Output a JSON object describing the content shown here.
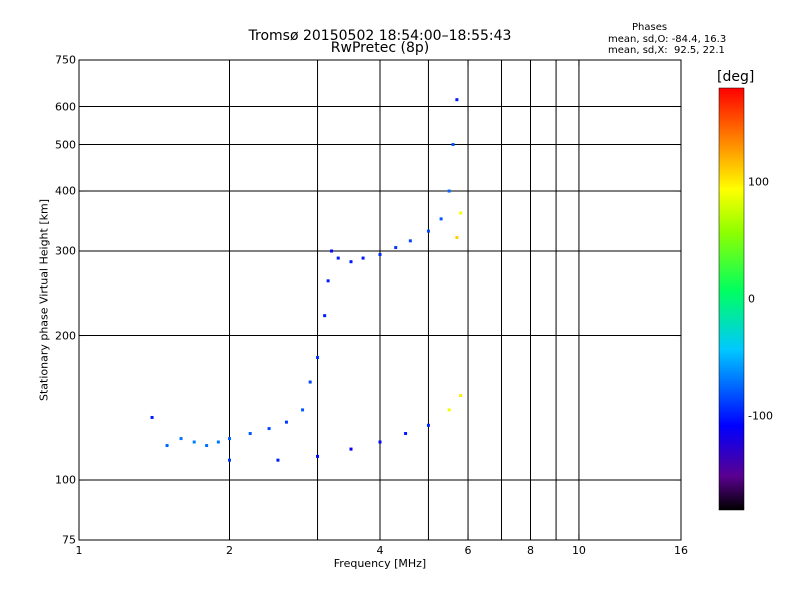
{
  "title_line1": "Tromsø 20150502 18:54:00–18:55:43",
  "title_line2": "RwPretec (8p)",
  "phases": {
    "heading": "Phases",
    "line1": "mean, sd,O: -84.4, 16.3",
    "line2": "mean, sd,X:  92.5, 22.1"
  },
  "colorbar": {
    "unit": "[deg]",
    "ticks": [
      {
        "label": "100",
        "value": 100
      },
      {
        "label": "0",
        "value": 0
      },
      {
        "label": "-100",
        "value": -100
      }
    ],
    "range": [
      -180,
      180
    ]
  },
  "chart_data": {
    "type": "scatter",
    "xlabel": "Frequency [MHz]",
    "ylabel": "Stationary phase Virtual Height [km]",
    "xscale": "log",
    "yscale": "log",
    "xlim": [
      1,
      16
    ],
    "ylim": [
      75,
      750
    ],
    "xticks": [
      {
        "label": "1",
        "value": 1
      },
      {
        "label": "2",
        "value": 2
      },
      {
        "label": "4",
        "value": 4
      },
      {
        "label": "6",
        "value": 6
      },
      {
        "label": "8",
        "value": 8
      },
      {
        "label": "10",
        "value": 10
      },
      {
        "label": "16",
        "value": 16
      }
    ],
    "yticks": [
      {
        "label": "750",
        "value": 750
      },
      {
        "label": "600",
        "value": 600
      },
      {
        "label": "500",
        "value": 500
      },
      {
        "label": "400",
        "value": 400
      },
      {
        "label": "300",
        "value": 300
      },
      {
        "label": "200",
        "value": 200
      },
      {
        "label": "100",
        "value": 100
      },
      {
        "label": "75",
        "value": 75
      }
    ],
    "grid_x": [
      1,
      2,
      3,
      4,
      5,
      6,
      7,
      8,
      9,
      10
    ],
    "grid_y": [
      100,
      200,
      300,
      400,
      500,
      600
    ],
    "grid": true,
    "series": [
      {
        "x": 1.4,
        "y": 135,
        "phase": -100
      },
      {
        "x": 1.5,
        "y": 118,
        "phase": -75
      },
      {
        "x": 1.6,
        "y": 122,
        "phase": -70
      },
      {
        "x": 1.7,
        "y": 120,
        "phase": -68
      },
      {
        "x": 1.8,
        "y": 118,
        "phase": -72
      },
      {
        "x": 1.9,
        "y": 120,
        "phase": -70
      },
      {
        "x": 2.0,
        "y": 122,
        "phase": -75
      },
      {
        "x": 2.2,
        "y": 125,
        "phase": -80
      },
      {
        "x": 2.4,
        "y": 128,
        "phase": -85
      },
      {
        "x": 2.6,
        "y": 132,
        "phase": -90
      },
      {
        "x": 2.8,
        "y": 140,
        "phase": -80
      },
      {
        "x": 2.9,
        "y": 160,
        "phase": -85
      },
      {
        "x": 3.0,
        "y": 180,
        "phase": -90
      },
      {
        "x": 3.1,
        "y": 220,
        "phase": -100
      },
      {
        "x": 3.15,
        "y": 260,
        "phase": -100
      },
      {
        "x": 3.2,
        "y": 300,
        "phase": -105
      },
      {
        "x": 3.3,
        "y": 290,
        "phase": -100
      },
      {
        "x": 3.5,
        "y": 285,
        "phase": -100
      },
      {
        "x": 3.7,
        "y": 290,
        "phase": -100
      },
      {
        "x": 4.0,
        "y": 295,
        "phase": -95
      },
      {
        "x": 4.3,
        "y": 305,
        "phase": -90
      },
      {
        "x": 4.6,
        "y": 315,
        "phase": -85
      },
      {
        "x": 5.0,
        "y": 330,
        "phase": -85
      },
      {
        "x": 5.3,
        "y": 350,
        "phase": -80
      },
      {
        "x": 5.5,
        "y": 400,
        "phase": -75
      },
      {
        "x": 5.6,
        "y": 500,
        "phase": -80
      },
      {
        "x": 5.7,
        "y": 620,
        "phase": -100
      },
      {
        "x": 2.0,
        "y": 110,
        "phase": -90
      },
      {
        "x": 2.5,
        "y": 110,
        "phase": -100
      },
      {
        "x": 3.0,
        "y": 112,
        "phase": -105
      },
      {
        "x": 3.5,
        "y": 116,
        "phase": -110
      },
      {
        "x": 4.0,
        "y": 120,
        "phase": -105
      },
      {
        "x": 4.5,
        "y": 125,
        "phase": -100
      },
      {
        "x": 5.0,
        "y": 130,
        "phase": -95
      },
      {
        "x": 5.5,
        "y": 140,
        "phase": 90
      },
      {
        "x": 5.8,
        "y": 150,
        "phase": 100
      },
      {
        "x": 5.7,
        "y": 320,
        "phase": 110
      },
      {
        "x": 5.8,
        "y": 360,
        "phase": 95
      }
    ]
  }
}
